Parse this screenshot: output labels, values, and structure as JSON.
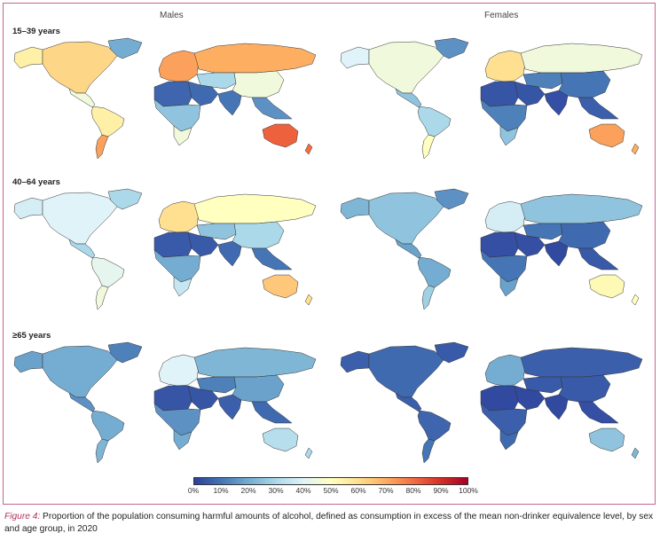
{
  "columns": [
    "Males",
    "Females"
  ],
  "rows": [
    "15–39 years",
    "40–64 years",
    "≥65 years"
  ],
  "legend": {
    "ticks": [
      "0%",
      "10%",
      "20%",
      "30%",
      "40%",
      "50%",
      "60%",
      "70%",
      "80%",
      "90%",
      "100%"
    ],
    "colors": [
      "#2c3f9b",
      "#4575b4",
      "#74add1",
      "#abd9e9",
      "#e0f3f8",
      "#ffffbf",
      "#fee090",
      "#fdae61",
      "#f46d43",
      "#d73027",
      "#a50026"
    ]
  },
  "caption": {
    "lead": "Figure 4:",
    "text": " Proportion of the population consuming harmful amounts of alcohol, defined as consumption in excess of the mean non-drinker equivalence level, by sex and age group, in 2020"
  },
  "region_levels": [
    [
      {
        "na": 0.62,
        "ak": 0.55,
        "gl": 0.2,
        "ca": 0.45,
        "sa": 0.55,
        "ssa": 0.72,
        "eu": 0.72,
        "ru": 0.7,
        "me": 0.08,
        "na_af": 0.07,
        "af": 0.25,
        "saf": 0.45,
        "ca_as": 0.3,
        "ch": 0.45,
        "in": 0.1,
        "sea": 0.15,
        "au": 0.82,
        "nz": 0.8
      },
      {
        "na": 0.45,
        "ak": 0.4,
        "gl": 0.15,
        "ca": 0.25,
        "sa": 0.3,
        "ssa": 0.5,
        "eu": 0.6,
        "ru": 0.45,
        "me": 0.04,
        "na_af": 0.04,
        "af": 0.12,
        "saf": 0.25,
        "ca_as": 0.12,
        "ch": 0.1,
        "in": 0.03,
        "sea": 0.06,
        "au": 0.72,
        "nz": 0.7
      }
    ],
    [
      {
        "na": 0.4,
        "ak": 0.38,
        "gl": 0.3,
        "ca": 0.3,
        "sa": 0.42,
        "ssa": 0.45,
        "eu": 0.6,
        "ru": 0.5,
        "me": 0.05,
        "na_af": 0.05,
        "af": 0.2,
        "saf": 0.35,
        "ca_as": 0.25,
        "ch": 0.3,
        "in": 0.08,
        "sea": 0.1,
        "au": 0.65,
        "nz": 0.6
      },
      {
        "na": 0.25,
        "ak": 0.22,
        "gl": 0.15,
        "ca": 0.18,
        "sa": 0.2,
        "ssa": 0.28,
        "eu": 0.38,
        "ru": 0.25,
        "me": 0.03,
        "na_af": 0.03,
        "af": 0.1,
        "saf": 0.18,
        "ca_as": 0.1,
        "ch": 0.08,
        "in": 0.02,
        "sea": 0.05,
        "au": 0.52,
        "nz": 0.5
      }
    ],
    [
      {
        "na": 0.2,
        "ak": 0.18,
        "gl": 0.12,
        "ca": 0.15,
        "sa": 0.2,
        "ssa": 0.22,
        "eu": 0.4,
        "ru": 0.22,
        "me": 0.04,
        "na_af": 0.04,
        "af": 0.15,
        "saf": 0.2,
        "ca_as": 0.12,
        "ch": 0.18,
        "in": 0.06,
        "sea": 0.08,
        "au": 0.32,
        "nz": 0.3
      },
      {
        "na": 0.08,
        "ak": 0.06,
        "gl": 0.05,
        "ca": 0.06,
        "sa": 0.07,
        "ssa": 0.1,
        "eu": 0.2,
        "ru": 0.06,
        "me": 0.02,
        "na_af": 0.02,
        "af": 0.06,
        "saf": 0.08,
        "ca_as": 0.05,
        "ch": 0.05,
        "in": 0.02,
        "sea": 0.03,
        "au": 0.25,
        "nz": 0.22
      }
    ]
  ]
}
